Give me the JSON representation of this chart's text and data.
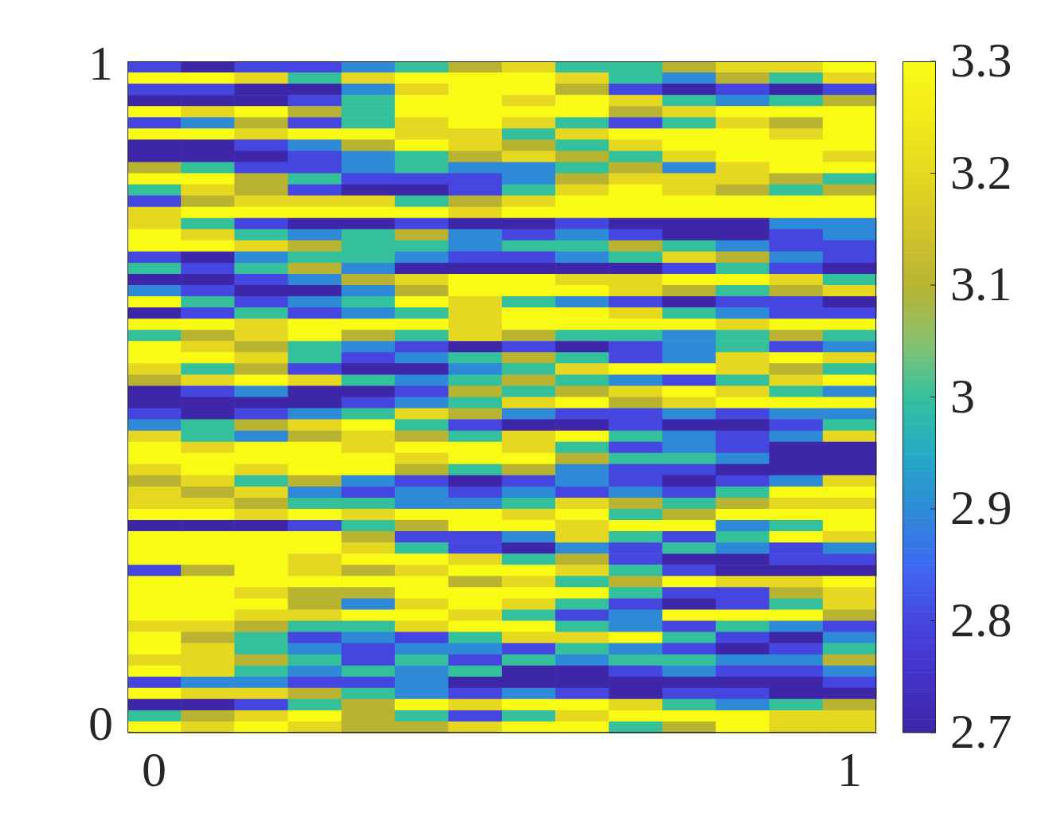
{
  "chart_data": {
    "type": "heatmap",
    "categories": [
      "0",
      null,
      null,
      null,
      null,
      null,
      null,
      null,
      null,
      null,
      null,
      null,
      null,
      "1"
    ],
    "y_categories": [
      "1",
      null,
      null,
      null,
      null,
      null,
      null,
      null,
      null,
      null,
      null,
      null,
      null,
      null,
      null,
      null,
      null,
      null,
      null,
      null,
      null,
      null,
      null,
      null,
      null,
      null,
      null,
      null,
      null,
      null,
      null,
      null,
      null,
      null,
      null,
      null,
      null,
      null,
      null,
      null,
      null,
      null,
      null,
      null,
      null,
      null,
      null,
      null,
      null,
      null,
      null,
      null,
      null,
      null,
      null,
      null,
      null,
      null,
      null,
      "0"
    ],
    "cells": [
      [
        2.8,
        2.7,
        2.8,
        2.8,
        2.9,
        3.0,
        3.1,
        3.2,
        3.0,
        3.0,
        3.1,
        3.2,
        3.2,
        3.3
      ],
      [
        3.3,
        3.3,
        3.2,
        3.0,
        3.2,
        3.3,
        3.3,
        3.3,
        3.2,
        3.0,
        2.9,
        3.1,
        3.0,
        3.2
      ],
      [
        2.8,
        2.8,
        2.7,
        2.7,
        2.9,
        3.2,
        3.3,
        3.3,
        3.1,
        2.8,
        2.7,
        2.8,
        2.7,
        2.8
      ],
      [
        2.7,
        2.7,
        2.7,
        2.8,
        3.0,
        3.3,
        3.3,
        3.2,
        3.3,
        3.2,
        3.0,
        2.9,
        3.0,
        3.1
      ],
      [
        3.3,
        3.2,
        3.3,
        3.1,
        3.0,
        3.3,
        3.3,
        3.3,
        3.3,
        3.1,
        3.2,
        3.3,
        3.3,
        3.3
      ],
      [
        2.8,
        2.9,
        3.1,
        2.8,
        3.0,
        3.2,
        3.3,
        3.2,
        3.0,
        2.8,
        3.0,
        3.2,
        3.1,
        3.3
      ],
      [
        3.3,
        3.3,
        3.2,
        3.3,
        3.3,
        3.2,
        3.2,
        3.0,
        3.2,
        3.3,
        3.3,
        3.3,
        3.2,
        3.3
      ],
      [
        2.7,
        2.7,
        2.8,
        2.9,
        3.1,
        3.3,
        3.2,
        3.1,
        3.0,
        3.2,
        3.3,
        3.3,
        3.3,
        3.3
      ],
      [
        2.7,
        2.7,
        2.7,
        2.8,
        2.9,
        3.0,
        3.1,
        3.2,
        3.1,
        3.0,
        3.2,
        3.3,
        3.3,
        3.2
      ],
      [
        3.1,
        3.0,
        2.8,
        2.8,
        2.9,
        3.0,
        2.9,
        2.9,
        3.0,
        3.1,
        2.9,
        3.2,
        3.3,
        3.3
      ],
      [
        3.3,
        3.3,
        3.1,
        3.0,
        2.8,
        2.8,
        2.8,
        2.9,
        3.1,
        3.2,
        3.2,
        3.2,
        3.1,
        3.0
      ],
      [
        3.0,
        3.2,
        3.1,
        2.8,
        2.7,
        2.7,
        2.8,
        3.0,
        3.2,
        3.3,
        3.2,
        3.1,
        3.0,
        3.1
      ],
      [
        2.8,
        3.1,
        3.2,
        3.2,
        3.2,
        3.0,
        3.1,
        3.2,
        3.3,
        3.3,
        3.3,
        3.3,
        3.3,
        3.3
      ],
      [
        3.2,
        3.3,
        3.3,
        3.3,
        3.3,
        3.3,
        3.2,
        3.3,
        3.3,
        3.3,
        3.3,
        3.3,
        3.3,
        3.3
      ],
      [
        3.2,
        3.0,
        2.8,
        2.7,
        2.7,
        2.8,
        2.7,
        2.7,
        2.8,
        2.7,
        2.7,
        2.7,
        2.9,
        2.9
      ],
      [
        3.3,
        3.2,
        3.0,
        2.9,
        3.0,
        3.1,
        2.9,
        2.8,
        2.9,
        2.8,
        2.7,
        2.7,
        2.8,
        2.9
      ],
      [
        3.3,
        3.3,
        3.2,
        3.1,
        3.0,
        3.0,
        2.9,
        3.0,
        3.0,
        3.1,
        3.0,
        2.9,
        2.8,
        2.8
      ],
      [
        2.8,
        2.7,
        2.9,
        3.0,
        3.0,
        2.9,
        2.8,
        2.8,
        2.9,
        3.0,
        3.2,
        3.1,
        2.9,
        2.8
      ],
      [
        3.0,
        2.8,
        3.0,
        3.1,
        2.9,
        2.7,
        2.7,
        2.7,
        2.7,
        2.7,
        2.8,
        3.0,
        2.8,
        2.7
      ],
      [
        2.7,
        2.7,
        2.8,
        2.9,
        3.1,
        3.2,
        3.3,
        3.3,
        3.2,
        3.2,
        3.3,
        3.3,
        3.2,
        3.0
      ],
      [
        2.9,
        2.8,
        2.7,
        2.7,
        2.9,
        3.1,
        3.3,
        3.3,
        3.3,
        3.2,
        3.1,
        3.0,
        3.1,
        3.2
      ],
      [
        3.3,
        3.0,
        2.8,
        2.9,
        3.0,
        3.3,
        3.2,
        3.0,
        2.9,
        2.8,
        2.7,
        2.8,
        2.8,
        2.7
      ],
      [
        2.7,
        2.8,
        3.0,
        2.8,
        2.9,
        3.0,
        3.2,
        3.3,
        3.3,
        3.2,
        3.0,
        2.9,
        2.8,
        2.8
      ],
      [
        3.3,
        3.3,
        3.2,
        3.3,
        3.3,
        3.3,
        3.2,
        3.3,
        3.3,
        3.3,
        3.3,
        3.2,
        3.3,
        3.3
      ],
      [
        3.0,
        3.1,
        3.2,
        3.3,
        3.1,
        3.0,
        3.2,
        3.1,
        3.0,
        3.0,
        2.9,
        3.0,
        3.1,
        3.0
      ],
      [
        3.3,
        3.2,
        3.1,
        3.0,
        2.9,
        2.8,
        2.7,
        2.8,
        2.7,
        2.8,
        2.9,
        3.0,
        2.8,
        2.9
      ],
      [
        3.3,
        3.3,
        3.2,
        3.0,
        2.8,
        2.9,
        3.0,
        3.1,
        3.0,
        2.8,
        2.9,
        3.2,
        3.3,
        3.2
      ],
      [
        3.2,
        3.0,
        3.1,
        2.8,
        2.7,
        2.7,
        2.9,
        3.0,
        3.2,
        3.3,
        3.3,
        3.2,
        3.1,
        3.0
      ],
      [
        3.1,
        3.2,
        3.3,
        3.2,
        3.0,
        2.9,
        3.0,
        3.1,
        3.0,
        2.9,
        2.8,
        3.0,
        3.2,
        3.3
      ],
      [
        2.7,
        2.8,
        2.9,
        2.7,
        2.7,
        2.8,
        3.1,
        3.0,
        3.1,
        3.2,
        3.3,
        3.2,
        3.0,
        2.9
      ],
      [
        2.7,
        2.7,
        2.7,
        2.7,
        2.8,
        2.9,
        3.0,
        3.2,
        3.3,
        3.1,
        3.2,
        3.3,
        3.3,
        3.3
      ],
      [
        2.8,
        2.7,
        2.8,
        2.9,
        3.0,
        3.2,
        3.1,
        2.9,
        2.8,
        2.8,
        2.9,
        2.8,
        2.9,
        2.9
      ],
      [
        2.9,
        3.0,
        3.1,
        3.2,
        3.3,
        3.0,
        2.8,
        2.7,
        2.7,
        2.8,
        2.7,
        2.7,
        2.8,
        3.0
      ],
      [
        3.2,
        3.0,
        2.9,
        3.1,
        3.2,
        3.1,
        3.0,
        3.2,
        3.3,
        3.0,
        2.9,
        2.8,
        2.9,
        3.2
      ],
      [
        3.3,
        3.2,
        3.3,
        3.3,
        3.2,
        3.3,
        3.3,
        3.2,
        3.0,
        2.8,
        2.9,
        2.8,
        2.7,
        2.7
      ],
      [
        3.3,
        3.3,
        3.3,
        3.3,
        3.3,
        3.2,
        3.3,
        3.3,
        3.1,
        3.0,
        3.0,
        2.9,
        2.7,
        2.7
      ],
      [
        3.2,
        3.3,
        3.2,
        3.3,
        3.3,
        3.1,
        3.0,
        3.1,
        2.9,
        2.8,
        2.8,
        2.7,
        2.7,
        2.7
      ],
      [
        3.1,
        3.2,
        3.0,
        3.1,
        2.9,
        2.8,
        2.7,
        2.8,
        2.9,
        2.8,
        2.7,
        2.8,
        2.9,
        3.2
      ],
      [
        3.2,
        3.1,
        3.2,
        2.9,
        2.8,
        2.9,
        2.8,
        2.9,
        2.8,
        2.9,
        2.8,
        3.0,
        3.3,
        3.3
      ],
      [
        3.2,
        3.2,
        3.1,
        3.0,
        3.0,
        2.9,
        2.9,
        3.0,
        3.2,
        3.1,
        3.0,
        3.1,
        3.2,
        3.2
      ],
      [
        3.3,
        3.3,
        3.2,
        3.3,
        3.2,
        3.3,
        3.3,
        3.2,
        3.3,
        3.0,
        3.1,
        3.3,
        3.3,
        3.3
      ],
      [
        2.7,
        2.7,
        2.7,
        2.8,
        3.0,
        3.1,
        3.3,
        3.3,
        3.2,
        3.3,
        3.3,
        2.9,
        3.0,
        3.3
      ],
      [
        3.3,
        3.3,
        3.3,
        3.3,
        3.1,
        2.8,
        2.8,
        2.9,
        3.2,
        3.0,
        2.8,
        3.0,
        3.3,
        3.2
      ],
      [
        3.3,
        3.3,
        3.3,
        3.3,
        3.2,
        3.0,
        2.8,
        2.7,
        2.9,
        2.8,
        3.0,
        2.9,
        2.8,
        2.9
      ],
      [
        3.3,
        3.3,
        3.3,
        3.2,
        3.3,
        3.3,
        3.2,
        3.0,
        3.1,
        2.8,
        2.7,
        2.7,
        2.8,
        2.8
      ],
      [
        2.8,
        3.1,
        3.3,
        3.2,
        3.1,
        3.2,
        3.3,
        3.3,
        3.2,
        3.0,
        2.8,
        2.7,
        2.7,
        2.7
      ],
      [
        3.3,
        3.3,
        3.3,
        3.3,
        3.3,
        3.3,
        3.1,
        3.2,
        3.0,
        3.1,
        3.3,
        3.2,
        3.2,
        3.3
      ],
      [
        3.3,
        3.3,
        3.2,
        3.1,
        3.1,
        3.3,
        3.3,
        3.3,
        3.3,
        3.0,
        2.8,
        2.8,
        3.1,
        3.2
      ],
      [
        3.3,
        3.3,
        3.3,
        3.1,
        2.9,
        3.2,
        3.3,
        3.2,
        3.0,
        2.8,
        2.7,
        2.8,
        3.0,
        3.2
      ],
      [
        3.3,
        3.3,
        3.2,
        3.2,
        3.3,
        3.3,
        3.2,
        3.0,
        2.8,
        2.9,
        3.3,
        3.3,
        3.3,
        3.1
      ],
      [
        3.2,
        3.2,
        3.1,
        3.0,
        3.0,
        3.2,
        3.3,
        3.3,
        3.0,
        2.9,
        2.8,
        3.0,
        2.9,
        2.8
      ],
      [
        3.3,
        3.1,
        3.0,
        2.8,
        2.9,
        2.8,
        3.0,
        3.2,
        3.2,
        3.3,
        3.0,
        2.8,
        2.7,
        2.9
      ],
      [
        3.3,
        3.2,
        3.0,
        2.9,
        2.8,
        2.9,
        2.9,
        2.8,
        3.0,
        2.9,
        2.8,
        2.7,
        2.8,
        3.0
      ],
      [
        3.2,
        3.2,
        3.1,
        3.0,
        2.8,
        3.0,
        2.8,
        3.0,
        2.9,
        3.0,
        3.0,
        2.9,
        2.9,
        3.1
      ],
      [
        3.3,
        3.2,
        3.0,
        2.9,
        3.0,
        2.9,
        3.0,
        2.7,
        2.7,
        2.8,
        2.9,
        2.8,
        2.8,
        2.9
      ],
      [
        2.8,
        2.9,
        2.9,
        2.8,
        2.8,
        2.9,
        2.7,
        2.7,
        2.7,
        2.7,
        2.7,
        2.7,
        2.7,
        2.8
      ],
      [
        3.3,
        3.2,
        3.2,
        3.1,
        3.0,
        2.9,
        2.8,
        2.9,
        2.8,
        2.7,
        2.8,
        2.8,
        2.7,
        2.7
      ],
      [
        2.7,
        2.7,
        2.8,
        3.0,
        3.1,
        3.3,
        3.2,
        3.3,
        3.3,
        3.2,
        3.0,
        2.9,
        3.0,
        3.1
      ],
      [
        3.0,
        3.1,
        3.2,
        3.3,
        3.1,
        3.0,
        2.8,
        3.0,
        3.2,
        3.3,
        3.3,
        3.3,
        3.2,
        3.2
      ],
      [
        3.3,
        3.2,
        3.3,
        3.2,
        3.1,
        3.1,
        3.2,
        3.3,
        3.3,
        3.0,
        3.1,
        3.3,
        3.2,
        3.2
      ]
    ],
    "clim": [
      2.7,
      3.3
    ],
    "cticks": [
      2.7,
      2.8,
      2.9,
      3,
      3.1,
      3.2,
      3.3
    ]
  }
}
